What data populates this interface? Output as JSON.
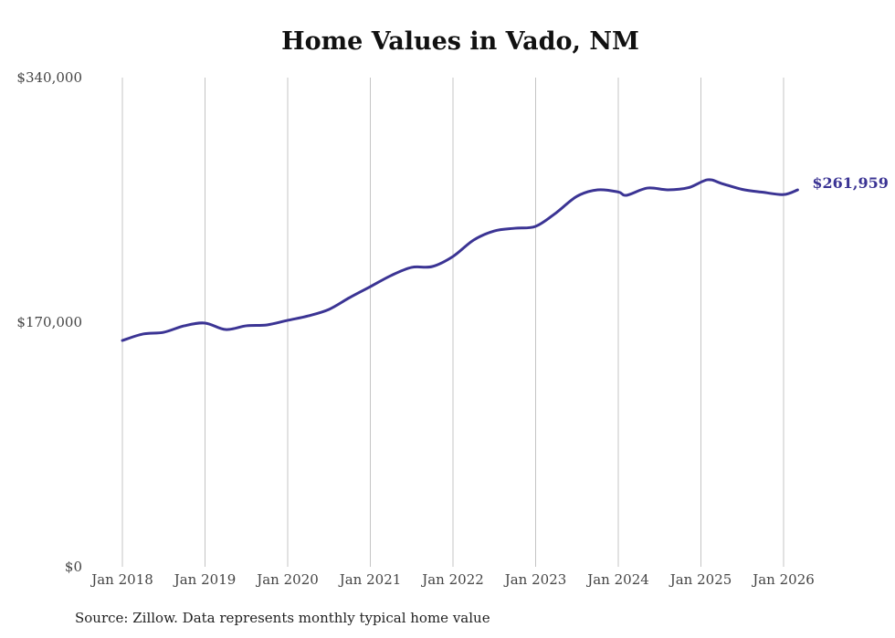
{
  "chart_data": {
    "type": "line",
    "title": "Home Values in Vado, NM",
    "xlabel": "",
    "ylabel": "",
    "ylim": [
      0,
      340000
    ],
    "yticks": [
      0,
      170000,
      340000
    ],
    "ytick_labels": [
      "$0",
      "$170,000",
      "$340,000"
    ],
    "xlim": [
      2018,
      2026.17
    ],
    "xticks": [
      2018,
      2019,
      2020,
      2021,
      2022,
      2023,
      2024,
      2025,
      2026
    ],
    "xtick_labels": [
      "Jan 2018",
      "Jan 2019",
      "Jan 2020",
      "Jan 2021",
      "Jan 2022",
      "Jan 2023",
      "Jan 2024",
      "Jan 2025",
      "Jan 2026"
    ],
    "grid": "vertical",
    "series": [
      {
        "name": "Typical home value",
        "color": "#3b3494",
        "x": [
          2018,
          2018.25,
          2018.5,
          2018.75,
          2019,
          2019.25,
          2019.5,
          2019.75,
          2020,
          2020.25,
          2020.5,
          2020.75,
          2021,
          2021.25,
          2021.5,
          2021.75,
          2022,
          2022.25,
          2022.5,
          2022.75,
          2023,
          2023.25,
          2023.5,
          2023.75,
          2024,
          2024.1,
          2024.35,
          2024.6,
          2024.85,
          2025.08,
          2025.25,
          2025.5,
          2025.75,
          2026,
          2026.17
        ],
        "y": [
          157300,
          161800,
          163000,
          167500,
          169400,
          164900,
          167500,
          168100,
          171300,
          174400,
          178900,
          187100,
          194700,
          202400,
          208100,
          208700,
          215700,
          227100,
          233400,
          235300,
          236600,
          246100,
          257500,
          262000,
          260500,
          258200,
          263200,
          262000,
          263500,
          269000,
          266400,
          262300,
          260300,
          258700,
          261959
        ]
      }
    ],
    "end_label": "$261,959"
  },
  "source": "Source: Zillow. Data represents monthly typical home value"
}
